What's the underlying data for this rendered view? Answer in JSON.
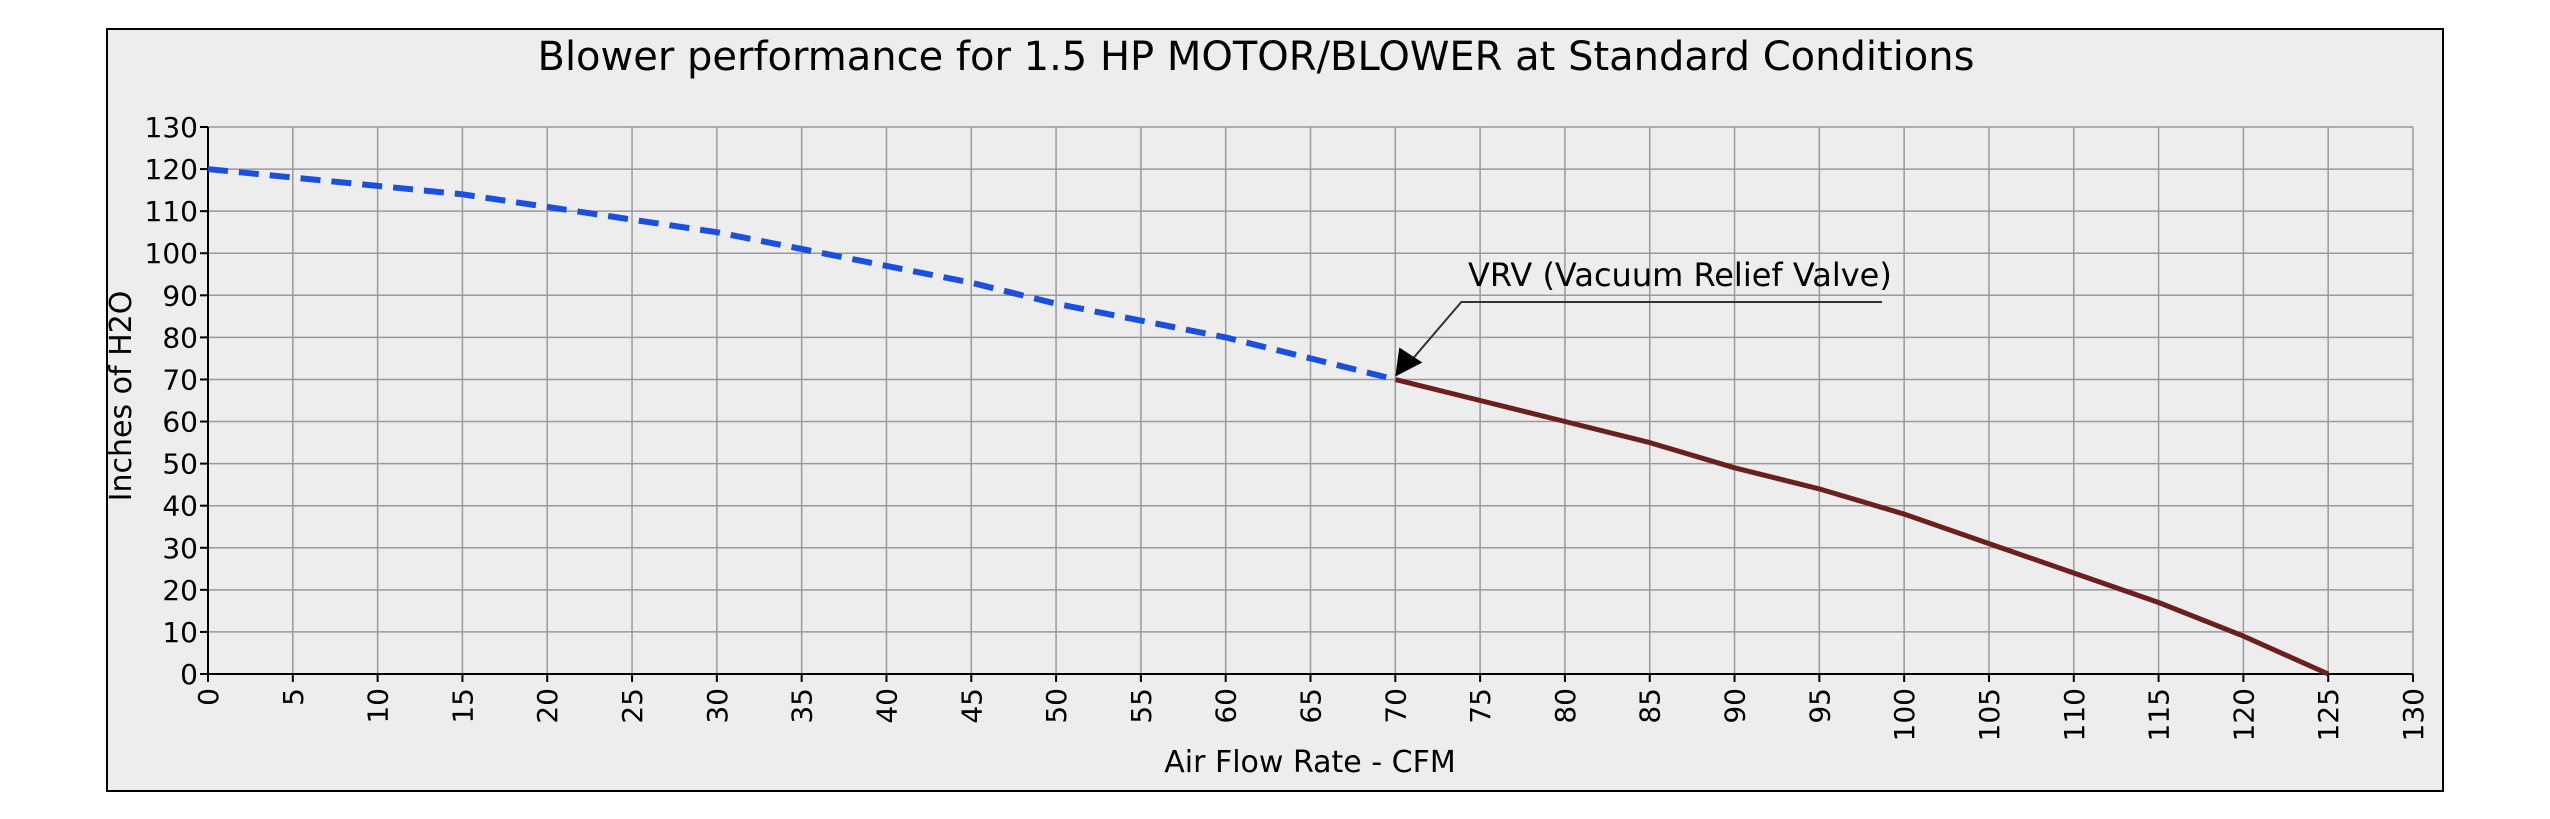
{
  "chart_data": {
    "type": "line",
    "title": "Blower performance for 1.5 HP MOTOR/BLOWER at Standard Conditions",
    "xlabel": "Air Flow Rate - CFM",
    "ylabel": "Inches of H2O",
    "xlim": [
      0,
      130
    ],
    "ylim": [
      0,
      130
    ],
    "xticks": [
      0,
      5,
      10,
      15,
      20,
      25,
      30,
      35,
      40,
      45,
      50,
      55,
      60,
      65,
      70,
      75,
      80,
      85,
      90,
      95,
      100,
      105,
      110,
      115,
      120,
      125,
      130
    ],
    "yticks": [
      0,
      10,
      20,
      30,
      40,
      50,
      60,
      70,
      80,
      90,
      100,
      110,
      120,
      130
    ],
    "grid": true,
    "series": [
      {
        "style": "dashed",
        "color": "#1a4fe0",
        "x": [
          0,
          5,
          10,
          15,
          20,
          25,
          30,
          35,
          40,
          45,
          50,
          55,
          60,
          65,
          70
        ],
        "y": [
          120,
          118,
          116,
          114,
          111,
          108,
          105,
          101,
          97,
          93,
          88,
          84,
          80,
          75,
          70
        ]
      },
      {
        "style": "solid",
        "color": "#6b1f1f",
        "x": [
          70,
          75,
          80,
          85,
          90,
          95,
          100,
          105,
          110,
          115,
          120,
          125
        ],
        "y": [
          70,
          65,
          60,
          55,
          49,
          44,
          38,
          31,
          24,
          17,
          9,
          0
        ]
      }
    ],
    "annotations": [
      {
        "text": "VRV (Vacuum Relief Valve)",
        "x": 70,
        "y": 70
      }
    ]
  }
}
